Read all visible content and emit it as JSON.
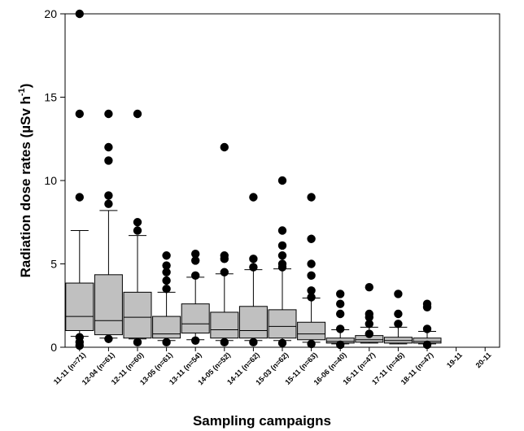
{
  "chart_data": {
    "type": "box",
    "xlabel": "Sampling campaigns",
    "ylabel_main": "Radiation dose rates (µSv h",
    "ylabel_sup": "-1",
    "ylabel_close": ")",
    "ylim": [
      0,
      20
    ],
    "yticks": [
      0,
      5,
      10,
      15,
      20
    ],
    "box_color": "#c0c0c0",
    "categories": [
      "11-11 (n=71)",
      "12-04 (n=61)",
      "12-11 (n=60)",
      "13-05 (n=61)",
      "13-11 (n=54)",
      "14-05 (n=52)",
      "14-11 (n=62)",
      "15-03 (n=62)",
      "15-11 (n=63)",
      "16-06 (n=40)",
      "16-11 (n=47)",
      "17-11 (n=45)",
      "18-11 (n=47)",
      "19-11",
      "20-11"
    ],
    "boxes": [
      {
        "min": 0.65,
        "q1": 1.0,
        "median": 1.85,
        "q3": 3.85,
        "max": 7.0,
        "outliers": [
          20.0,
          14.0,
          9.0,
          0.6,
          0.3,
          0.1
        ]
      },
      {
        "min": 0.55,
        "q1": 0.75,
        "median": 1.6,
        "q3": 4.35,
        "max": 8.2,
        "outliers": [
          14.0,
          12.0,
          11.2,
          9.1,
          8.6,
          0.5
        ]
      },
      {
        "min": 0.5,
        "q1": 0.55,
        "median": 1.8,
        "q3": 3.3,
        "max": 6.7,
        "outliers": [
          14.0,
          7.5,
          7.0,
          0.3
        ]
      },
      {
        "min": 0.4,
        "q1": 0.55,
        "median": 0.8,
        "q3": 1.85,
        "max": 3.3,
        "outliers": [
          5.5,
          4.9,
          4.5,
          4.0,
          3.5,
          0.3
        ]
      },
      {
        "min": 0.45,
        "q1": 0.85,
        "median": 1.4,
        "q3": 2.6,
        "max": 4.2,
        "outliers": [
          5.6,
          5.2,
          4.3,
          0.4
        ]
      },
      {
        "min": 0.4,
        "q1": 0.55,
        "median": 1.05,
        "q3": 2.1,
        "max": 4.4,
        "outliers": [
          12.0,
          5.5,
          5.3,
          4.5,
          0.3
        ]
      },
      {
        "min": 0.4,
        "q1": 0.55,
        "median": 1.0,
        "q3": 2.45,
        "max": 4.65,
        "outliers": [
          9.0,
          5.3,
          4.8,
          0.3
        ]
      },
      {
        "min": 0.4,
        "q1": 0.55,
        "median": 1.25,
        "q3": 2.25,
        "max": 4.7,
        "outliers": [
          10.0,
          7.0,
          6.1,
          5.5,
          5.0,
          4.8,
          0.25
        ]
      },
      {
        "min": 0.3,
        "q1": 0.45,
        "median": 0.8,
        "q3": 1.5,
        "max": 2.95,
        "outliers": [
          9.0,
          6.5,
          5.0,
          4.3,
          3.4,
          3.0,
          0.2
        ]
      },
      {
        "min": 0.2,
        "q1": 0.25,
        "median": 0.35,
        "q3": 0.55,
        "max": 1.05,
        "outliers": [
          3.2,
          2.6,
          2.0,
          1.1,
          0.15
        ]
      },
      {
        "min": 0.25,
        "q1": 0.3,
        "median": 0.45,
        "q3": 0.7,
        "max": 1.2,
        "outliers": [
          3.6,
          2.0,
          1.8,
          1.4,
          0.8
        ]
      },
      {
        "min": 0.2,
        "q1": 0.25,
        "median": 0.4,
        "q3": 0.6,
        "max": 1.2,
        "outliers": [
          3.2,
          2.0,
          1.4
        ]
      },
      {
        "min": 0.2,
        "q1": 0.25,
        "median": 0.35,
        "q3": 0.55,
        "max": 0.95,
        "outliers": [
          2.6,
          2.4,
          1.1,
          0.15
        ]
      },
      null,
      null
    ]
  }
}
